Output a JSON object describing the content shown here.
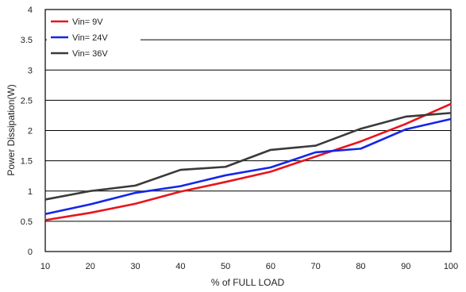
{
  "chart_data": {
    "type": "line",
    "title": "",
    "xlabel": "% of FULL LOAD",
    "ylabel": "Power Dissipation(W)",
    "x": [
      10,
      20,
      30,
      40,
      50,
      60,
      70,
      80,
      90,
      100
    ],
    "xticks": [
      "10",
      "20",
      "30",
      "40",
      "50",
      "60",
      "70",
      "80",
      "90",
      "100"
    ],
    "yticks": [
      "0",
      "0.5",
      "1",
      "1.5",
      "2",
      "2.5",
      "3",
      "3.5",
      "4"
    ],
    "xlim": [
      10,
      100
    ],
    "ylim": [
      0,
      4
    ],
    "grid": "horizontal",
    "legend_position": "top-left",
    "series": [
      {
        "name": "Vin= 9V",
        "color": "#e8141b",
        "values": [
          0.52,
          0.64,
          0.79,
          0.99,
          1.15,
          1.32,
          1.57,
          1.82,
          2.11,
          2.44
        ]
      },
      {
        "name": "Vin= 24V",
        "color": "#1426e8",
        "values": [
          0.62,
          0.78,
          0.97,
          1.08,
          1.26,
          1.39,
          1.64,
          1.7,
          2.02,
          2.19
        ]
      },
      {
        "name": "Vin= 36V",
        "color": "#3a3a3a",
        "values": [
          0.86,
          1.0,
          1.09,
          1.35,
          1.4,
          1.68,
          1.75,
          2.03,
          2.23,
          2.29
        ]
      }
    ]
  }
}
